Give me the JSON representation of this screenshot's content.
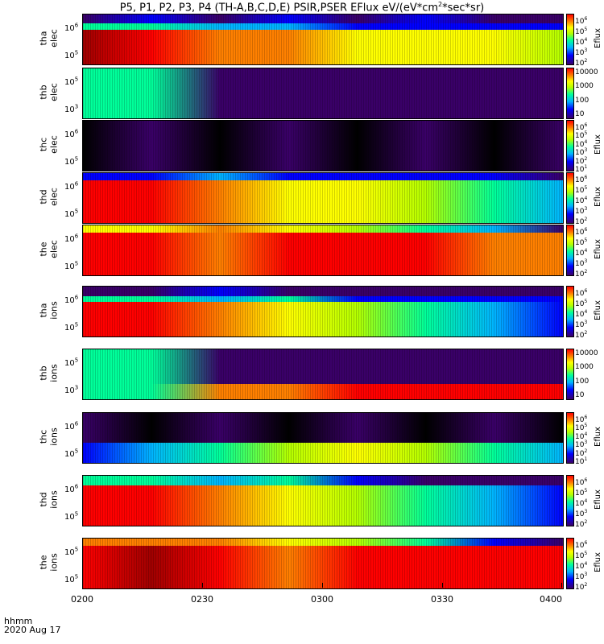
{
  "title": {
    "prefix": "P5, P1, P2, P3, P4 (TH-A,B,C,D,E) PSIR,PSER EFlux eV/(eV*cm",
    "sup": "2",
    "suffix": "*sec*sr)"
  },
  "x_axis": {
    "ticks": [
      "0200",
      "0230",
      "0300",
      "0330",
      "0400"
    ],
    "annotation_line1": "hhmm",
    "annotation_line2": "2020 Aug 17"
  },
  "cbar_label": "Eflux",
  "colors": {
    "dark_red": "#a00000",
    "red": "#ff0000",
    "orange": "#ff8000",
    "yellow": "#ffff00",
    "lime": "#b4ff00",
    "green": "#00ff9a",
    "cyan": "#00b4ff",
    "blue": "#0000ff",
    "purple": "#3a0068",
    "black": "#000000"
  },
  "chart_data": {
    "type": "heatmap",
    "title": "P5, P1, P2, P3, P4 (TH-A,B,C,D,E) PSIR,PSER EFlux eV/(eV*cm^2*sec*sr)",
    "x_range": [
      "0200",
      "0400"
    ],
    "xlabel": "hhmm",
    "panels": [
      {
        "ylabel1": "tha",
        "ylabel2": "elec",
        "yticks": [
          "10^6",
          "10^5"
        ],
        "cbar_ticks": [
          "10^6",
          "10^5",
          "10^4",
          "10^3",
          "10^2"
        ],
        "cbar_label": "Eflux",
        "rows": [
          {
            "h": 0.18,
            "c": [
              "purple",
              "blue",
              "purple",
              "blue",
              "purple",
              "blue",
              "purple",
              "purple"
            ]
          },
          {
            "h": 0.12,
            "c": [
              "green",
              "green",
              "cyan",
              "cyan",
              "blue",
              "blue",
              "blue",
              "blue"
            ]
          },
          {
            "h": 0.7,
            "c": [
              "dark_red",
              "red",
              "orange",
              "orange",
              "yellow",
              "yellow",
              "yellow",
              "lime"
            ]
          }
        ]
      },
      {
        "ylabel1": "thb",
        "ylabel2": "elec",
        "yticks": [
          "10^5",
          "10^3"
        ],
        "cbar_ticks": [
          "10000",
          "1000",
          "100",
          "10"
        ],
        "cbar_label": "",
        "rows": [
          {
            "h": 1.0,
            "c": [
              "green",
              "green",
              "purple",
              "purple",
              "purple",
              "purple",
              "purple",
              "purple"
            ]
          }
        ]
      },
      {
        "ylabel1": "thc",
        "ylabel2": "elec",
        "yticks": [
          "10^6",
          "10^5"
        ],
        "cbar_ticks": [
          "10^6",
          "10^5",
          "10^4",
          "10^3",
          "10^2",
          "10^1"
        ],
        "cbar_label": "Eflux",
        "rows": [
          {
            "h": 1.0,
            "c": [
              "black",
              "purple",
              "black",
              "purple",
              "black",
              "purple",
              "black",
              "purple"
            ]
          }
        ]
      },
      {
        "ylabel1": "thd",
        "ylabel2": "elec",
        "yticks": [
          "10^6",
          "10^5"
        ],
        "cbar_ticks": [
          "10^6",
          "10^5",
          "10^4",
          "10^3",
          "10^2"
        ],
        "cbar_label": "Eflux",
        "rows": [
          {
            "h": 0.15,
            "c": [
              "blue",
              "blue",
              "cyan",
              "blue",
              "blue",
              "blue",
              "blue",
              "purple"
            ]
          },
          {
            "h": 0.85,
            "c": [
              "red",
              "red",
              "orange",
              "yellow",
              "yellow",
              "lime",
              "green",
              "cyan"
            ]
          }
        ]
      },
      {
        "ylabel1": "the",
        "ylabel2": "elec",
        "yticks": [
          "10^6",
          "10^5"
        ],
        "cbar_ticks": [
          "10^6",
          "10^5",
          "10^4",
          "10^3",
          "10^2"
        ],
        "cbar_label": "Eflux",
        "rows": [
          {
            "h": 0.15,
            "c": [
              "yellow",
              "yellow",
              "orange",
              "yellow",
              "lime",
              "green",
              "cyan",
              "purple"
            ]
          },
          {
            "h": 0.85,
            "c": [
              "red",
              "red",
              "orange",
              "red",
              "red",
              "red",
              "orange",
              "orange"
            ]
          }
        ]
      },
      {
        "ylabel1": "tha",
        "ylabel2": "ions",
        "yticks": [
          "10^6",
          "10^5"
        ],
        "cbar_ticks": [
          "10^6",
          "10^5",
          "10^4",
          "10^3",
          "10^2"
        ],
        "cbar_label": "Eflux",
        "rows": [
          {
            "h": 0.2,
            "c": [
              "purple",
              "purple",
              "blue",
              "purple",
              "purple",
              "purple",
              "purple",
              "purple"
            ]
          },
          {
            "h": 0.1,
            "c": [
              "green",
              "green",
              "cyan",
              "green",
              "blue",
              "blue",
              "blue",
              "blue"
            ]
          },
          {
            "h": 0.7,
            "c": [
              "red",
              "red",
              "orange",
              "yellow",
              "lime",
              "green",
              "cyan",
              "blue"
            ]
          }
        ]
      },
      {
        "ylabel1": "thb",
        "ylabel2": "ions",
        "yticks": [
          "10^5",
          "10^3"
        ],
        "cbar_ticks": [
          "10000",
          "1000",
          "100",
          "10"
        ],
        "cbar_label": "",
        "rows": [
          {
            "h": 0.7,
            "c": [
              "green",
              "green",
              "purple",
              "purple",
              "purple",
              "purple",
              "purple",
              "purple"
            ]
          },
          {
            "h": 0.3,
            "c": [
              "green",
              "green",
              "orange",
              "orange",
              "red",
              "red",
              "red",
              "red"
            ]
          }
        ]
      },
      {
        "ylabel1": "thc",
        "ylabel2": "ions",
        "yticks": [
          "10^6",
          "10^5"
        ],
        "cbar_ticks": [
          "10^6",
          "10^5",
          "10^4",
          "10^3",
          "10^2",
          "10^1"
        ],
        "cbar_label": "Eflux",
        "rows": [
          {
            "h": 0.6,
            "c": [
              "purple",
              "black",
              "purple",
              "black",
              "purple",
              "black",
              "purple",
              "black"
            ]
          },
          {
            "h": 0.4,
            "c": [
              "blue",
              "cyan",
              "green",
              "lime",
              "yellow",
              "lime",
              "green",
              "cyan"
            ]
          }
        ]
      },
      {
        "ylabel1": "thd",
        "ylabel2": "ions",
        "yticks": [
          "10^6",
          "10^5"
        ],
        "cbar_ticks": [
          "10^6",
          "10^5",
          "10^4",
          "10^3",
          "10^2"
        ],
        "cbar_label": "Eflux",
        "rows": [
          {
            "h": 0.2,
            "c": [
              "green",
              "green",
              "cyan",
              "green",
              "blue",
              "purple",
              "purple",
              "purple"
            ]
          },
          {
            "h": 0.8,
            "c": [
              "red",
              "red",
              "orange",
              "yellow",
              "lime",
              "green",
              "cyan",
              "blue"
            ]
          }
        ]
      },
      {
        "ylabel1": "the",
        "ylabel2": "ions",
        "yticks": [
          "10^5",
          "10^5"
        ],
        "cbar_ticks": [
          "10^6",
          "10^5",
          "10^4",
          "10^3",
          "10^2"
        ],
        "cbar_label": "Eflux",
        "rows": [
          {
            "h": 0.15,
            "c": [
              "orange",
              "orange",
              "orange",
              "yellow",
              "lime",
              "green",
              "blue",
              "purple"
            ]
          },
          {
            "h": 0.85,
            "c": [
              "red",
              "dark_red",
              "red",
              "orange",
              "red",
              "red",
              "red",
              "red"
            ]
          }
        ]
      }
    ]
  }
}
